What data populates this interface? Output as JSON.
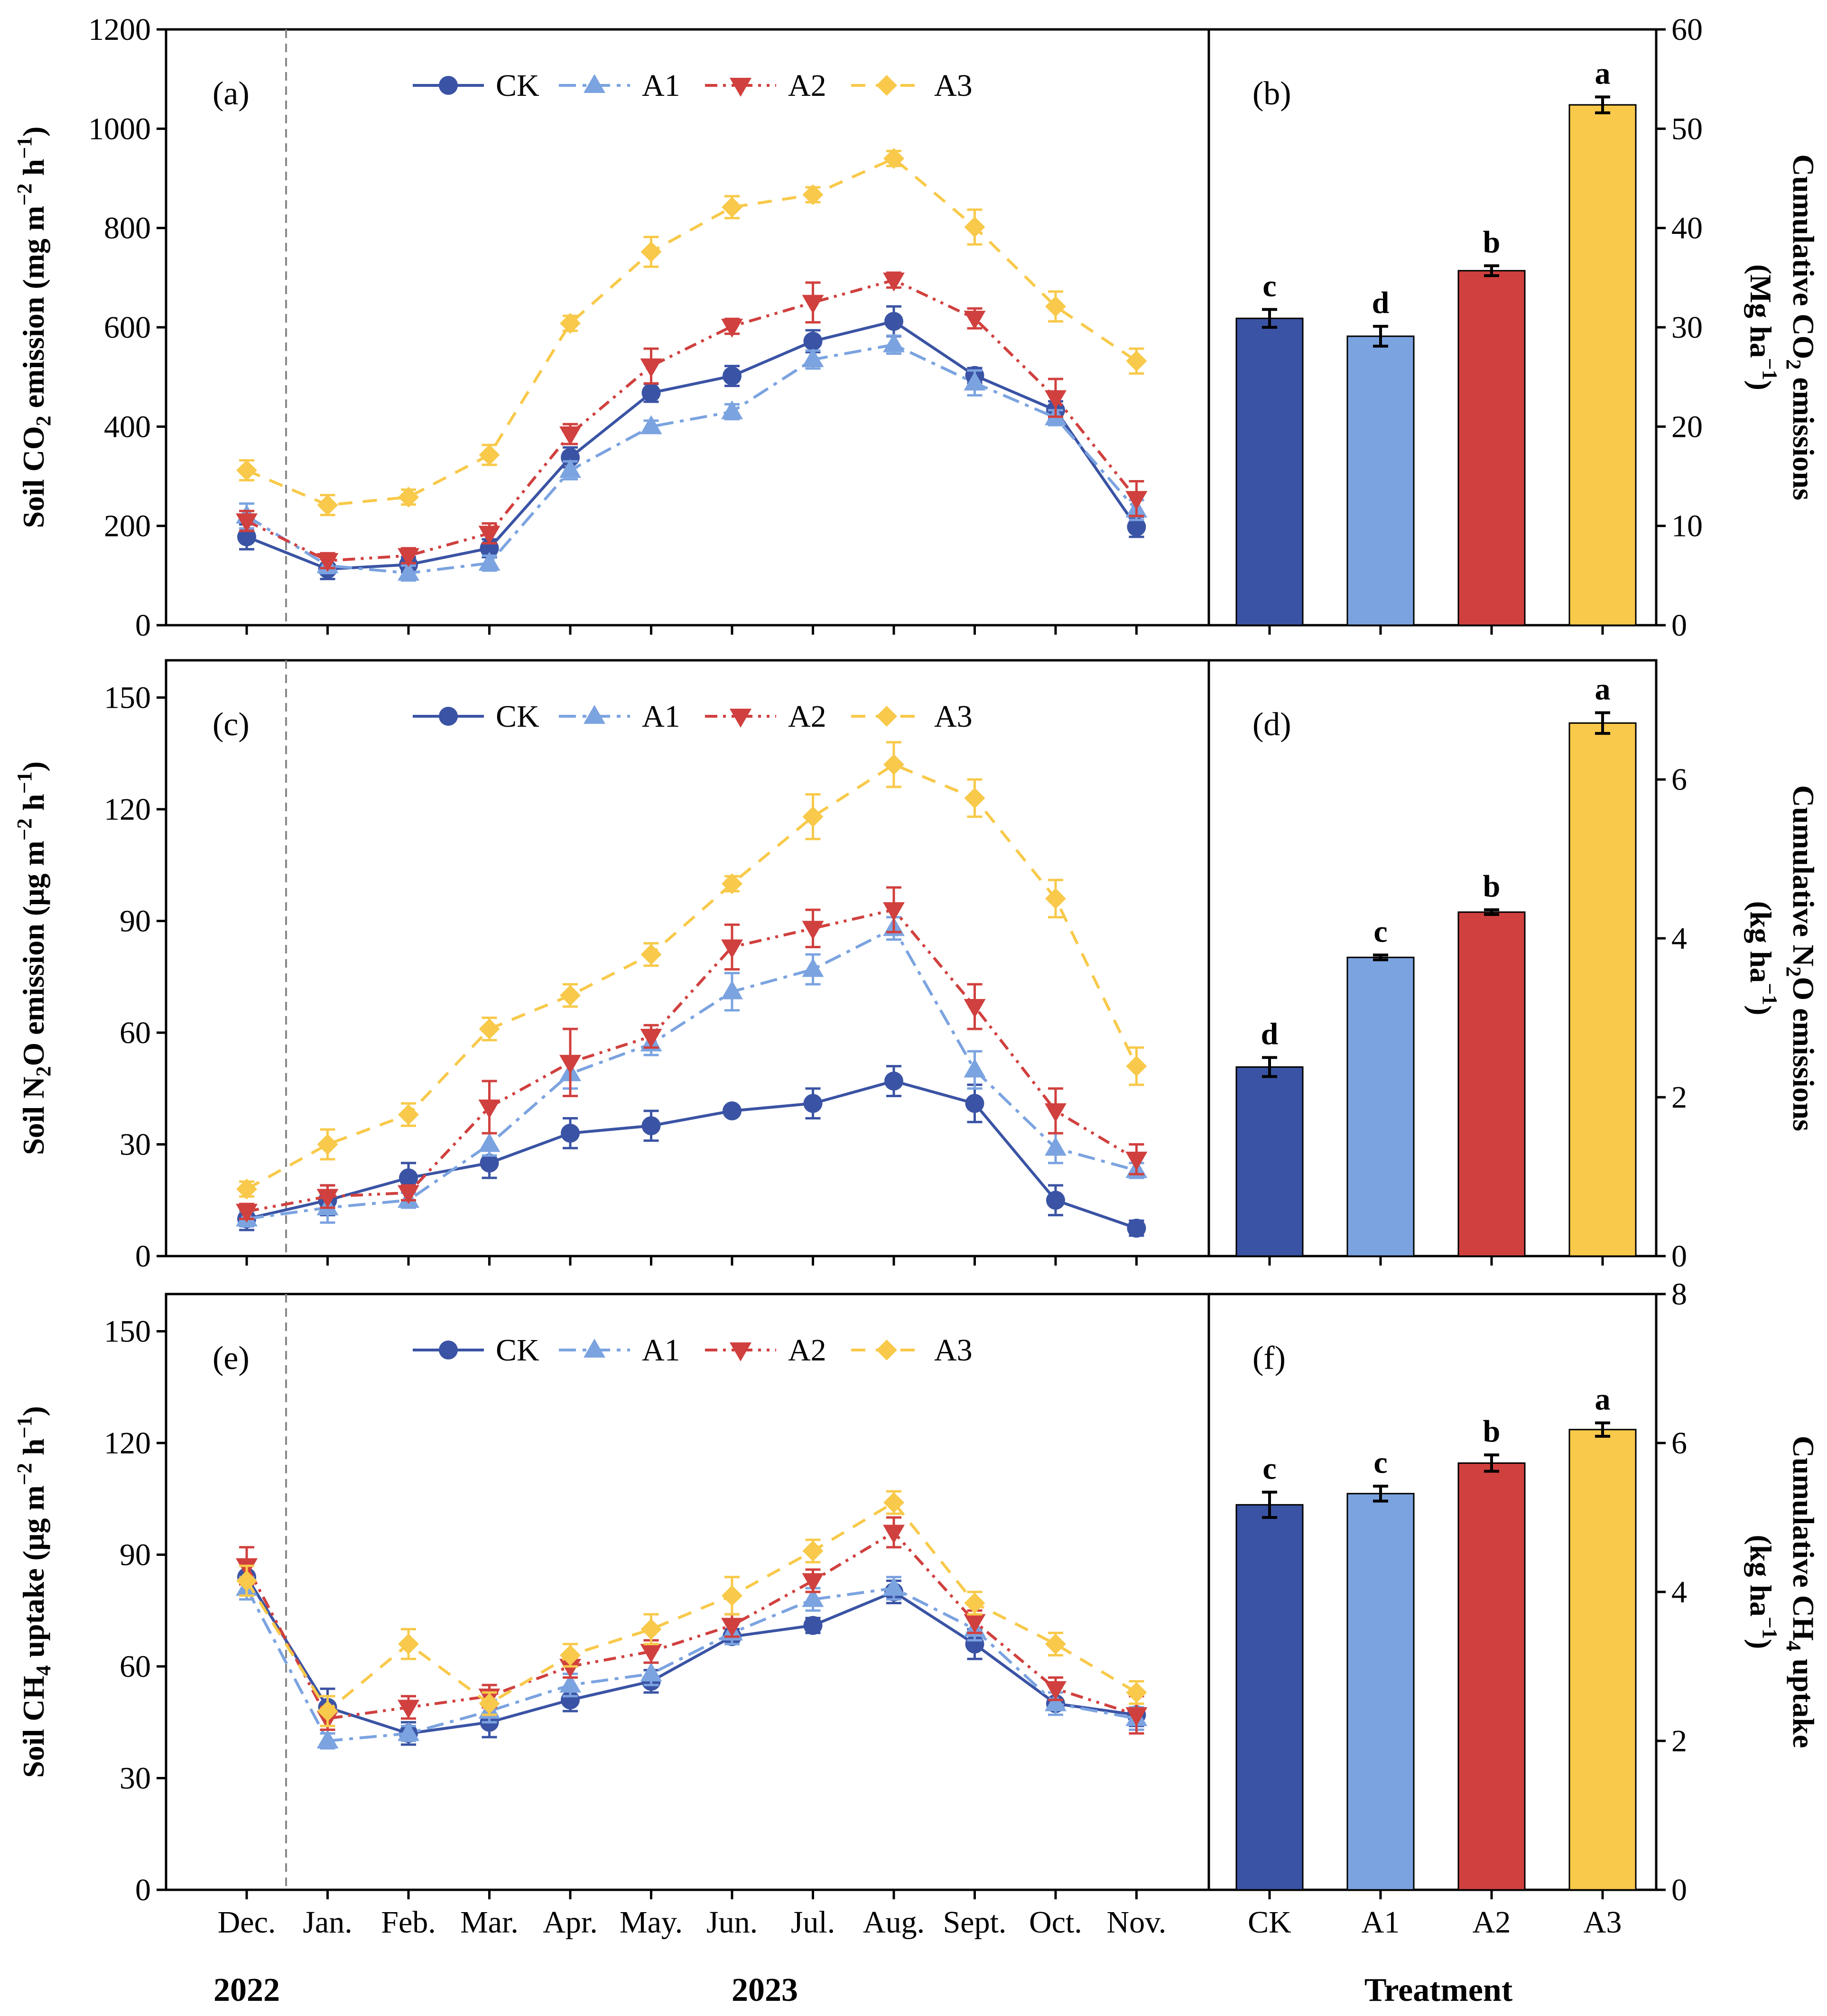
{
  "months": [
    "Dec.",
    "Jan.",
    "Feb.",
    "Mar.",
    "Apr.",
    "May.",
    "Jun.",
    "Jul.",
    "Aug.",
    "Sept.",
    "Oct.",
    "Nov."
  ],
  "year_labels": [
    "2022",
    "2023"
  ],
  "treatment_label": "Treatment",
  "colors": {
    "CK": "#3a53a4",
    "A1": "#7ba3e0",
    "A2": "#d0403e",
    "A3": "#f8c94a"
  },
  "chart_data": [
    {
      "type": "line",
      "panel": "(a)",
      "ylabel_parts": [
        "Soil CO",
        "2",
        " emission (mg m",
        "−2",
        " h",
        "−1",
        ")"
      ],
      "ylim": [
        0,
        1200
      ],
      "yticks": [
        "0",
        "200",
        "400",
        "600",
        "800",
        "1000",
        "1200"
      ],
      "categories": [
        "Dec.",
        "Jan.",
        "Feb.",
        "Mar.",
        "Apr.",
        "May.",
        "Jun.",
        "Jul.",
        "Aug.",
        "Sept.",
        "Oct.",
        "Nov."
      ],
      "legend": [
        "CK",
        "A1",
        "A2",
        "A3"
      ],
      "series": [
        {
          "name": "CK",
          "values": [
            178,
            113,
            122,
            155,
            338,
            468,
            502,
            572,
            612,
            503,
            433,
            198
          ],
          "errors": [
            25,
            20,
            15,
            18,
            20,
            18,
            20,
            22,
            30,
            15,
            18,
            20
          ]
        },
        {
          "name": "A1",
          "values": [
            220,
            120,
            105,
            125,
            312,
            400,
            430,
            535,
            565,
            488,
            418,
            232
          ],
          "errors": [
            25,
            15,
            15,
            15,
            18,
            12,
            15,
            18,
            18,
            25,
            15,
            20
          ]
        },
        {
          "name": "A2",
          "values": [
            210,
            130,
            140,
            185,
            385,
            522,
            602,
            650,
            695,
            618,
            458,
            255
          ],
          "errors": [
            20,
            15,
            15,
            20,
            20,
            35,
            15,
            40,
            15,
            20,
            38,
            35
          ]
        },
        {
          "name": "A3",
          "values": [
            312,
            242,
            258,
            343,
            608,
            752,
            842,
            867,
            940,
            802,
            642,
            532
          ],
          "errors": [
            20,
            20,
            15,
            20,
            15,
            30,
            22,
            15,
            15,
            35,
            30,
            25
          ]
        }
      ]
    },
    {
      "type": "bar",
      "panel": "(b)",
      "ylabel_line1_parts": [
        "Cumulative CO",
        "2",
        " emissions"
      ],
      "ylabel_line2_parts": [
        "(Mg ha",
        "−1",
        ")"
      ],
      "ylim": [
        0,
        60
      ],
      "yticks": [
        "0",
        "10",
        "20",
        "30",
        "40",
        "50",
        "60"
      ],
      "categories": [
        "CK",
        "A1",
        "A2",
        "A3"
      ],
      "values": [
        30.9,
        29.1,
        35.7,
        52.4
      ],
      "errors": [
        0.9,
        1.0,
        0.5,
        0.8
      ],
      "letters": [
        "c",
        "d",
        "b",
        "a"
      ]
    },
    {
      "type": "line",
      "panel": "(c)",
      "ylabel_parts": [
        "Soil N",
        "2",
        "O emission (μg m",
        "−2",
        " h",
        "−1",
        ")"
      ],
      "ylim": [
        0,
        160
      ],
      "yticks": [
        "0",
        "30",
        "60",
        "90",
        "120",
        "150"
      ],
      "categories": [
        "Dec.",
        "Jan.",
        "Feb.",
        "Mar.",
        "Apr.",
        "May.",
        "Jun.",
        "Jul.",
        "Aug.",
        "Sept.",
        "Oct.",
        "Nov."
      ],
      "legend": [
        "CK",
        "A1",
        "A2",
        "A3"
      ],
      "series": [
        {
          "name": "CK",
          "values": [
            10,
            15,
            21,
            25,
            33,
            35,
            39,
            41,
            47,
            41,
            15,
            7.5
          ],
          "errors": [
            3,
            4,
            4,
            4,
            4,
            4,
            1,
            4,
            4,
            5,
            4,
            2
          ]
        },
        {
          "name": "A1",
          "values": [
            10,
            13,
            15,
            30,
            49,
            57,
            71,
            77,
            88,
            50,
            29,
            23
          ],
          "errors": [
            2,
            4,
            2,
            3,
            4,
            3,
            5,
            4,
            3,
            5,
            4,
            2
          ]
        },
        {
          "name": "A2",
          "values": [
            12,
            16,
            17,
            40,
            52,
            59,
            83,
            88,
            93,
            67,
            39,
            26
          ],
          "errors": [
            2,
            3,
            2,
            7,
            9,
            3,
            6,
            5,
            6,
            6,
            6,
            4
          ]
        },
        {
          "name": "A3",
          "values": [
            18,
            30,
            38,
            61,
            70,
            81,
            100,
            118,
            132,
            123,
            96,
            51
          ],
          "errors": [
            2,
            4,
            3,
            3,
            3,
            3,
            2,
            6,
            6,
            5,
            5,
            5
          ]
        }
      ]
    },
    {
      "type": "bar",
      "panel": "(d)",
      "ylabel_line1_parts": [
        "Cumulative N",
        "2",
        "O emissions"
      ],
      "ylabel_line2_parts": [
        "(kg ha",
        "−1",
        ")"
      ],
      "ylim": [
        0,
        7.5
      ],
      "yticks": [
        "0",
        "2",
        "4",
        "6"
      ],
      "categories": [
        "CK",
        "A1",
        "A2",
        "A3"
      ],
      "values": [
        2.38,
        3.76,
        4.33,
        6.71
      ],
      "errors": [
        0.12,
        0.03,
        0.03,
        0.13
      ],
      "letters": [
        "d",
        "c",
        "b",
        "a"
      ]
    },
    {
      "type": "line",
      "panel": "(e)",
      "ylabel_parts": [
        "Soil CH",
        "4",
        " uptake (μg m",
        "−2",
        " h",
        "−1",
        ")"
      ],
      "ylim": [
        0,
        160
      ],
      "yticks": [
        "0",
        "30",
        "60",
        "90",
        "120",
        "150"
      ],
      "categories": [
        "Dec.",
        "Jan.",
        "Feb.",
        "Mar.",
        "Apr.",
        "May.",
        "Jun.",
        "Jul.",
        "Aug.",
        "Sept.",
        "Oct.",
        "Nov."
      ],
      "legend": [
        "CK",
        "A1",
        "A2",
        "A3"
      ],
      "series": [
        {
          "name": "CK",
          "values": [
            84,
            49,
            42,
            45,
            51,
            56,
            68,
            71,
            80,
            66,
            50,
            47
          ],
          "errors": [
            4,
            5,
            3,
            4,
            3,
            3,
            2,
            2,
            3,
            4,
            3,
            3
          ]
        },
        {
          "name": "A1",
          "values": [
            81,
            40,
            42,
            48,
            55,
            58,
            69,
            78,
            81,
            70,
            50,
            46
          ],
          "errors": [
            3,
            2,
            2,
            3,
            3,
            3,
            3,
            3,
            3,
            3,
            3,
            3
          ]
        },
        {
          "name": "A2",
          "values": [
            87,
            46,
            49,
            52,
            60,
            64,
            71,
            83,
            96,
            72,
            54,
            47
          ],
          "errors": [
            5,
            3,
            3,
            3,
            3,
            3,
            3,
            3,
            4,
            3,
            3,
            5
          ]
        },
        {
          "name": "A3",
          "values": [
            83,
            48,
            66,
            50,
            63,
            70,
            79,
            91,
            104,
            77,
            66,
            53
          ],
          "errors": [
            4,
            4,
            4,
            3,
            3,
            4,
            5,
            3,
            3,
            3,
            3,
            3
          ]
        }
      ]
    },
    {
      "type": "bar",
      "panel": "(f)",
      "ylabel_line1_parts": [
        "Cumulative CH",
        "4",
        " uptake"
      ],
      "ylabel_line2_parts": [
        "(kg ha",
        "−1",
        ")"
      ],
      "ylim": [
        0,
        8
      ],
      "yticks": [
        "0",
        "2",
        "4",
        "6",
        "8"
      ],
      "categories": [
        "CK",
        "A1",
        "A2",
        "A3"
      ],
      "values": [
        5.17,
        5.32,
        5.73,
        6.18
      ],
      "errors": [
        0.17,
        0.1,
        0.11,
        0.09
      ],
      "letters": [
        "c",
        "c",
        "b",
        "a"
      ]
    }
  ]
}
